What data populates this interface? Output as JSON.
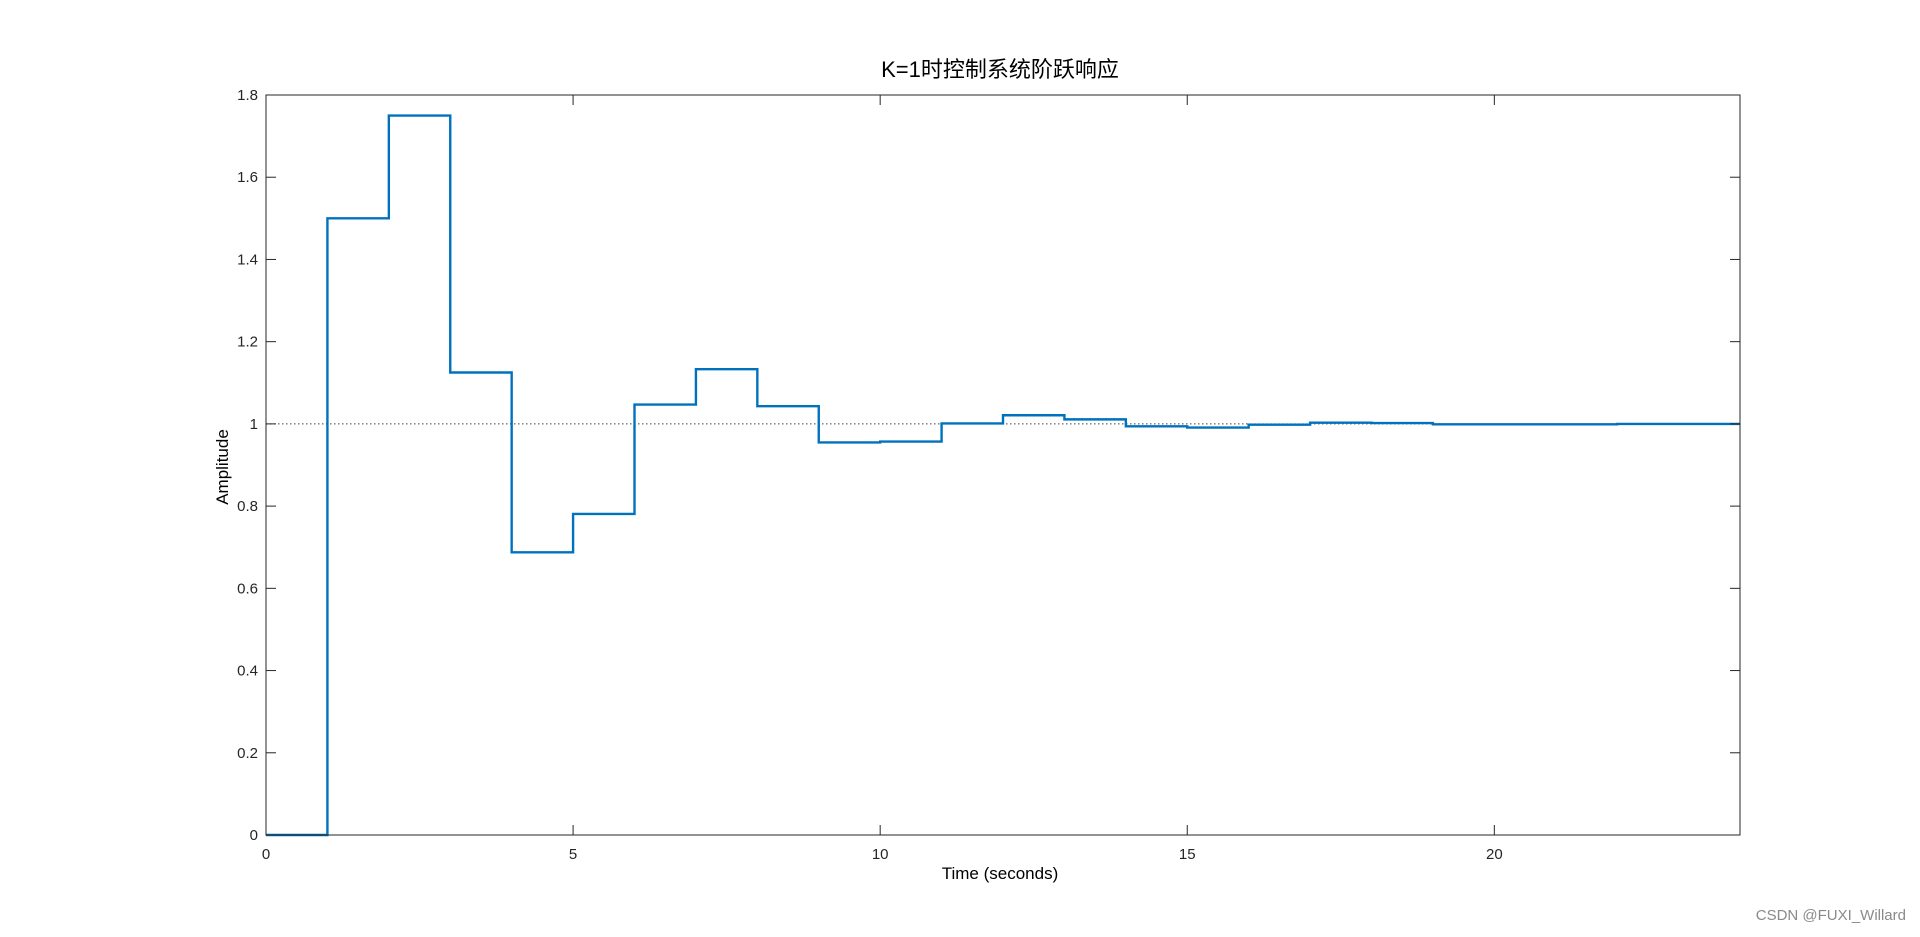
{
  "chart_data": {
    "type": "line",
    "title": "K=1时控制系统阶跃响应",
    "xlabel": "Time (seconds)",
    "ylabel": "Amplitude",
    "xlim": [
      0,
      24
    ],
    "ylim": [
      0,
      1.8
    ],
    "xticks": [
      0,
      5,
      10,
      15,
      20
    ],
    "yticks": [
      0,
      0.2,
      0.4,
      0.6,
      0.8,
      1,
      1.2,
      1.4,
      1.6,
      1.8
    ],
    "xtick_labels": [
      "0",
      "5",
      "10",
      "15",
      "20"
    ],
    "ytick_labels": [
      "0",
      "0.2",
      "0.4",
      "0.6",
      "0.8",
      "1",
      "1.2",
      "1.4",
      "1.6",
      "1.8"
    ],
    "grid": false,
    "steady_state": 1,
    "series": [
      {
        "step": "post",
        "color": "#0072BD",
        "x": [
          0,
          1,
          2,
          3,
          4,
          5,
          6,
          7,
          8,
          9,
          10,
          11,
          12,
          13,
          14,
          15,
          16,
          17,
          18,
          19,
          20,
          21,
          22,
          23,
          24
        ],
        "values": [
          0,
          1.5,
          1.75,
          1.125,
          0.6875,
          0.781,
          1.047,
          1.133,
          1.043,
          0.955,
          0.957,
          1.001,
          1.021,
          1.011,
          0.994,
          0.991,
          0.998,
          1.003,
          1.002,
          0.999,
          0.999,
          0.999,
          1.0,
          1.0,
          1.0
        ]
      }
    ]
  },
  "watermark": "CSDN @FUXI_Willard"
}
